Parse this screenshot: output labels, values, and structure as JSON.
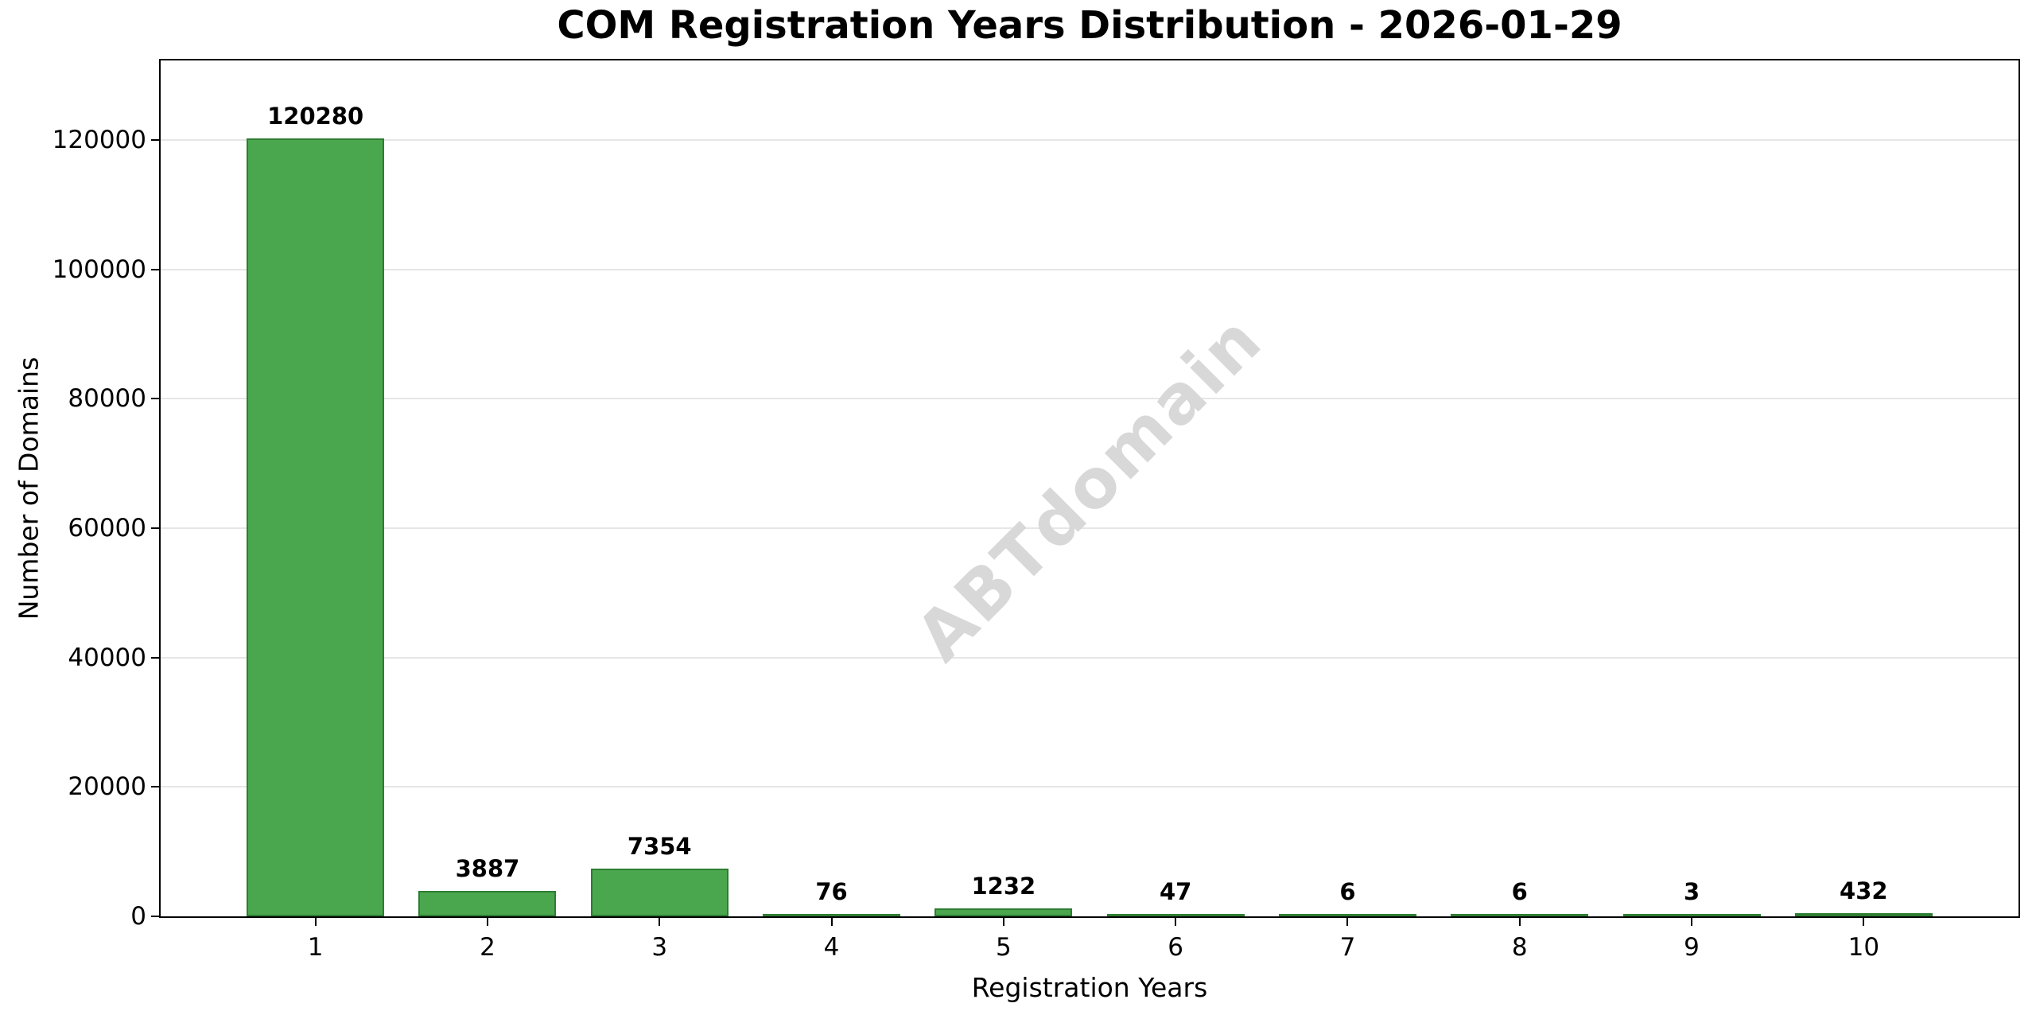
{
  "chart_data": {
    "type": "bar",
    "title": "COM Registration Years Distribution - 2026-01-29",
    "xlabel": "Registration Years",
    "ylabel": "Number of Domains",
    "categories": [
      "1",
      "2",
      "3",
      "4",
      "5",
      "6",
      "7",
      "8",
      "9",
      "10"
    ],
    "values": [
      120280,
      3887,
      7354,
      76,
      1232,
      47,
      6,
      6,
      3,
      432
    ],
    "bar_value_labels": [
      "120280",
      "3887",
      "7354",
      "76",
      "1232",
      "47",
      "6",
      "6",
      "3",
      "432"
    ],
    "ylim": [
      0,
      132300
    ],
    "yticks": [
      0,
      20000,
      40000,
      60000,
      80000,
      100000,
      120000
    ],
    "grid": "horizontal",
    "watermark": "ABTdomain",
    "colors": {
      "bar_fill": "#4ba74e",
      "bar_edge": "#2e7d32",
      "grid_line": "#e6e6e6",
      "spine": "#000000",
      "tick": "#000000",
      "text": "#000000",
      "watermark": "#d8d8d8",
      "background": "#ffffff"
    }
  }
}
